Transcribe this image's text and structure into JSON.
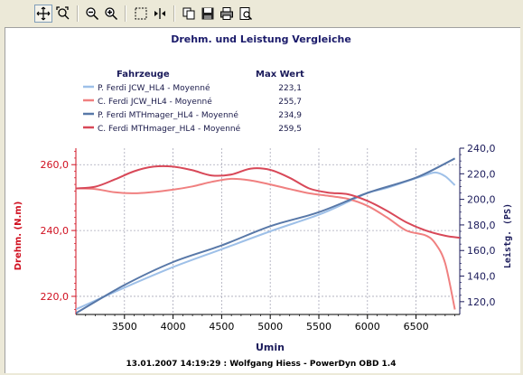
{
  "toolbar": {
    "buttons": [
      {
        "name": "pan-icon",
        "active": true
      },
      {
        "name": "zoom-area-icon",
        "active": false
      },
      {
        "name": "zoom-out-icon",
        "active": false
      },
      {
        "name": "zoom-in-icon",
        "active": false
      },
      {
        "name": "select-rect-icon",
        "active": false
      },
      {
        "name": "fit-width-icon",
        "active": false
      },
      {
        "name": "copy-icon",
        "active": false
      },
      {
        "name": "save-icon",
        "active": false
      },
      {
        "name": "print-icon",
        "active": false
      },
      {
        "name": "print-preview-icon",
        "active": false
      }
    ]
  },
  "legend": {
    "header_vehicles": "Fahrzeuge",
    "header_max": "Max Wert",
    "items": [
      {
        "label": "P. Ferdi JCW_HL4 - Moyenné",
        "value": "223,1",
        "color": "#9ec0e8"
      },
      {
        "label": "C. Ferdi JCW_HL4 - Moyenné",
        "value": "255,7",
        "color": "#f08080"
      },
      {
        "label": "P. Ferdi MTHmager_HL4 - Moyenné",
        "value": "234,9",
        "color": "#5878a8"
      },
      {
        "label": "C. Ferdi MTHmager_HL4 - Moyenné",
        "value": "259,5",
        "color": "#d84858"
      }
    ]
  },
  "footer": "13.01.2007 14:19:29 : Wolfgang Hiess - PowerDyn OBD 1.4",
  "chart_data": {
    "type": "line",
    "title": "Drehm. und Leistung Vergleiche",
    "xlabel": "Umin",
    "ylabel_left": "Drehm. (N.m)",
    "ylabel_right": "Leistg. (PS)",
    "xlim": [
      3000,
      6950
    ],
    "ylim_left": [
      214.5,
      265
    ],
    "ylim_right": [
      110,
      240
    ],
    "x_ticks": [
      3500,
      4000,
      4500,
      5000,
      5500,
      6000,
      6500
    ],
    "y_left_ticks": [
      {
        "v": 220,
        "t": "220,0"
      },
      {
        "v": 240,
        "t": "240,0"
      },
      {
        "v": 260,
        "t": "260,0"
      }
    ],
    "y_right_ticks": [
      {
        "v": 120,
        "t": "120,0"
      },
      {
        "v": 140,
        "t": "140,0"
      },
      {
        "v": 160,
        "t": "160,0"
      },
      {
        "v": 180,
        "t": "180,0"
      },
      {
        "v": 200,
        "t": "200,0"
      },
      {
        "v": 220,
        "t": "220,0"
      },
      {
        "v": 240,
        "t": "240,0"
      }
    ],
    "grid": true,
    "series": [
      {
        "name": "P. Ferdi JCW_HL4 - Moyenné",
        "axis": "right",
        "color": "#9ec0e8",
        "x": [
          3000,
          3500,
          4000,
          4500,
          5000,
          5500,
          5800,
          6000,
          6200,
          6400,
          6600,
          6700,
          6800,
          6900
        ],
        "y": [
          114,
          131,
          147,
          161,
          175,
          188,
          198,
          205,
          209,
          214,
          219,
          221,
          218,
          211
        ]
      },
      {
        "name": "C. Ferdi JCW_HL4 - Moyenné",
        "axis": "left",
        "color": "#f08080",
        "x": [
          3000,
          3200,
          3400,
          3600,
          3800,
          4000,
          4200,
          4400,
          4600,
          4800,
          5000,
          5200,
          5400,
          5600,
          5800,
          6000,
          6200,
          6400,
          6600,
          6700,
          6800,
          6900
        ],
        "y": [
          252.8,
          252.6,
          251.6,
          251.3,
          251.7,
          252.4,
          253.4,
          254.8,
          255.7,
          255.2,
          254,
          252.6,
          251.3,
          250.5,
          249.6,
          247.5,
          244,
          240,
          238.5,
          236,
          230,
          216
        ]
      },
      {
        "name": "P. Ferdi MTHmager_HL4 - Moyenné",
        "axis": "right",
        "color": "#5878a8",
        "x": [
          3000,
          3500,
          4000,
          4500,
          5000,
          5500,
          6000,
          6500,
          6900
        ],
        "y": [
          111,
          133,
          151,
          164,
          179,
          190,
          205,
          217,
          232
        ]
      },
      {
        "name": "C. Ferdi MTHmager_HL4 - Moyenné",
        "axis": "left",
        "color": "#d84858",
        "x": [
          3000,
          3200,
          3400,
          3600,
          3800,
          4000,
          4200,
          4400,
          4600,
          4800,
          5000,
          5200,
          5400,
          5600,
          5800,
          6000,
          6200,
          6400,
          6600,
          6800,
          6950
        ],
        "y": [
          252.8,
          253.3,
          255.5,
          258,
          259.4,
          259.4,
          258.3,
          256.7,
          257,
          258.8,
          258.4,
          256,
          252.8,
          251.5,
          251,
          249,
          246,
          242.5,
          240,
          238.4,
          237.8
        ]
      }
    ]
  }
}
